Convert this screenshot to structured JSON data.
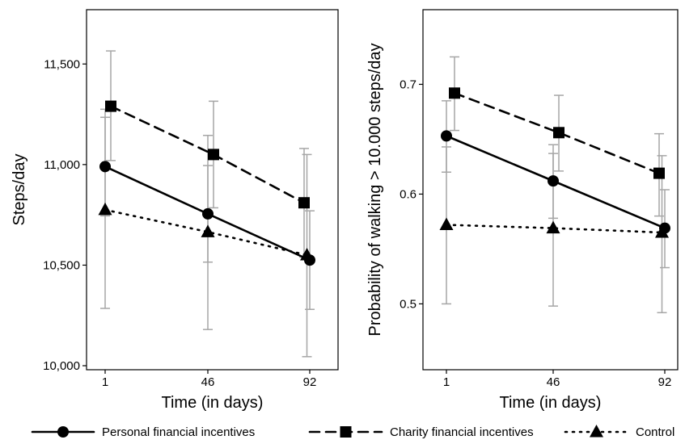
{
  "chart_data": [
    {
      "type": "line",
      "title": "",
      "xlabel": "Time (in days)",
      "ylabel": "Steps/day",
      "x": [
        1,
        46,
        92
      ],
      "xticks": [
        "1",
        "46",
        "92"
      ],
      "yticks": [
        "10,000",
        "10,500",
        "11,000",
        "11,500"
      ],
      "ytick_values": [
        10000,
        10500,
        11000,
        11500
      ],
      "ylim": [
        9980,
        11770
      ],
      "grid": false,
      "series": [
        {
          "name": "Personal financial incentives",
          "values": [
            10990,
            10755,
            10525
          ],
          "ci_low": [
            10745,
            10515,
            10280
          ],
          "ci_high": [
            11235,
            10995,
            10770
          ]
        },
        {
          "name": "Charity financial incentives",
          "values": [
            11290,
            11050,
            10810
          ],
          "ci_low": [
            11020,
            10785,
            10540
          ],
          "ci_high": [
            11565,
            11315,
            11080
          ]
        },
        {
          "name": "Control",
          "values": [
            10775,
            10665,
            10550
          ],
          "ci_low": [
            10285,
            10180,
            10045
          ],
          "ci_high": [
            11275,
            11145,
            11050
          ]
        }
      ]
    },
    {
      "type": "line",
      "title": "",
      "xlabel": "Time (in days)",
      "ylabel": "Probability of walking > 10.000 steps/day",
      "x": [
        1,
        46,
        92
      ],
      "xticks": [
        "1",
        "46",
        "92"
      ],
      "yticks": [
        "0.5",
        "0.6",
        "0.7"
      ],
      "ytick_values": [
        0.5,
        0.6,
        0.7
      ],
      "ylim": [
        0.44,
        0.768
      ],
      "grid": false,
      "series": [
        {
          "name": "Personal financial incentives",
          "values": [
            0.653,
            0.612,
            0.569
          ],
          "ci_low": [
            0.62,
            0.578,
            0.533
          ],
          "ci_high": [
            0.685,
            0.645,
            0.604
          ]
        },
        {
          "name": "Charity financial incentives",
          "values": [
            0.692,
            0.656,
            0.619
          ],
          "ci_low": [
            0.658,
            0.621,
            0.58
          ],
          "ci_high": [
            0.725,
            0.69,
            0.655
          ]
        },
        {
          "name": "Control",
          "values": [
            0.572,
            0.569,
            0.565
          ],
          "ci_low": [
            0.5,
            0.498,
            0.492
          ],
          "ci_high": [
            0.643,
            0.637,
            0.635
          ]
        }
      ]
    }
  ],
  "legend": {
    "position": "bottom",
    "items": [
      {
        "label": "Personal financial incentives",
        "marker": "circle",
        "line": "solid"
      },
      {
        "label": "Charity financial incentives",
        "marker": "square",
        "line": "dashed"
      },
      {
        "label": "Control",
        "marker": "triangle",
        "line": "dotted"
      }
    ]
  },
  "colors": {
    "series": "#000000",
    "error_bars": "#a6a6a6",
    "axes": "#000000"
  }
}
